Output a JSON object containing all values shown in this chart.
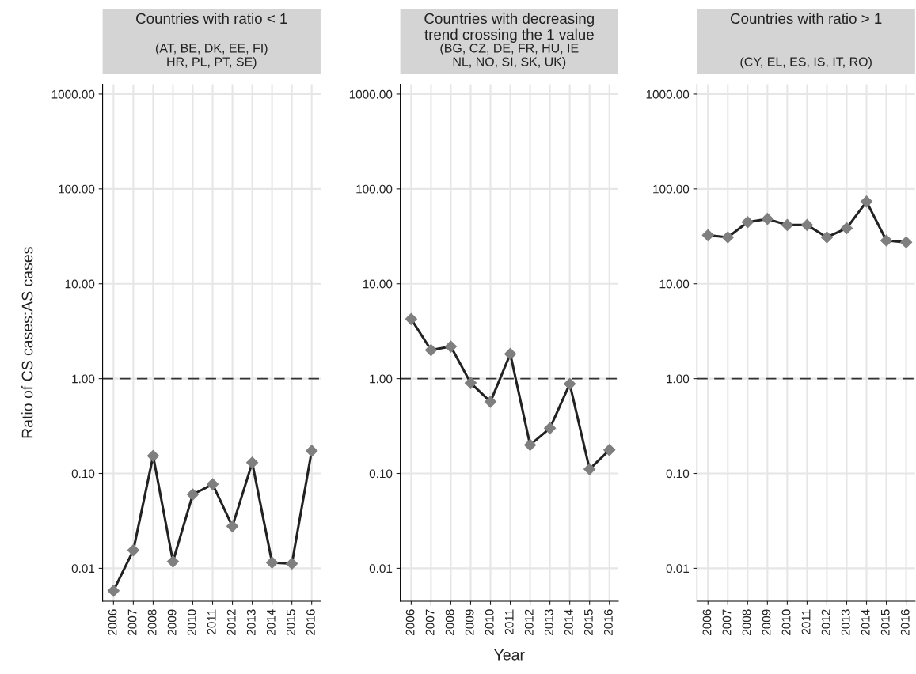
{
  "chart_data": [
    {
      "type": "line",
      "title": "Countries with ratio < 1",
      "subtitle": "(AT, BE, DK, EE, FI)\nHR, PL, PT, SE)",
      "ylabel": "Ratio of CS cases:AS cases",
      "categories": [
        "2006",
        "2007",
        "2008",
        "2009",
        "2010",
        "2011",
        "2012",
        "2013",
        "2014",
        "2015",
        "2016"
      ],
      "series": [
        {
          "color": "#7f7f7f",
          "values": [
            0.0058,
            0.0155,
            0.153,
            0.0118,
            0.06,
            0.077,
            0.0277,
            0.13,
            0.0115,
            0.0112,
            0.173
          ]
        }
      ],
      "log": "y",
      "ylim": [
        0.0045,
        1270
      ],
      "yticks": [
        {
          "value": 0.01,
          "label": "0.01"
        },
        {
          "value": 0.1,
          "label": "0.10"
        },
        {
          "value": 1,
          "label": "1.00"
        },
        {
          "value": 10,
          "label": "10.00"
        },
        {
          "value": 100,
          "label": "100.00"
        },
        {
          "value": 1000,
          "label": "1000.00"
        }
      ],
      "ref_lines": [
        {
          "axis": "y",
          "value": 1,
          "color": "#333333",
          "line_style": "dashed"
        }
      ],
      "grid": true,
      "marker": "diamond",
      "line_style": "solid"
    },
    {
      "type": "line",
      "title": "Countries with decreasing\ntrend crossing the 1 value",
      "subtitle": "(BG, CZ, DE, FR, HU, IE\nNL, NO, SI, SK, UK)",
      "xlabel": "Year",
      "categories": [
        "2006",
        "2007",
        "2008",
        "2009",
        "2010",
        "2011",
        "2012",
        "2013",
        "2014",
        "2015",
        "2016"
      ],
      "series": [
        {
          "color": "#7f7f7f",
          "values": [
            4.25,
            2.0,
            2.18,
            0.9,
            0.57,
            1.82,
            0.2,
            0.3,
            0.88,
            0.111,
            0.177
          ]
        }
      ],
      "log": "y",
      "ylim": [
        0.0045,
        1270
      ],
      "yticks": [
        {
          "value": 0.01,
          "label": "0.01"
        },
        {
          "value": 0.1,
          "label": "0.10"
        },
        {
          "value": 1,
          "label": "1.00"
        },
        {
          "value": 10,
          "label": "10.00"
        },
        {
          "value": 100,
          "label": "100.00"
        },
        {
          "value": 1000,
          "label": "1000.00"
        }
      ],
      "ref_lines": [
        {
          "axis": "y",
          "value": 1,
          "color": "#333333",
          "line_style": "dashed"
        }
      ],
      "grid": true,
      "marker": "diamond",
      "line_style": "solid"
    },
    {
      "type": "line",
      "title": "Countries with ratio > 1",
      "subtitle": "(CY, EL, ES, IS, IT, RO)",
      "categories": [
        "2006",
        "2007",
        "2008",
        "2009",
        "2010",
        "2011",
        "2012",
        "2013",
        "2014",
        "2015",
        "2016"
      ],
      "series": [
        {
          "color": "#7f7f7f",
          "values": [
            32.5,
            30.9,
            44.7,
            48.3,
            41.7,
            41.7,
            30.9,
            38.6,
            73.5,
            28.6,
            27.4
          ]
        }
      ],
      "log": "y",
      "ylim": [
        0.0045,
        1270
      ],
      "yticks": [
        {
          "value": 0.01,
          "label": "0.01"
        },
        {
          "value": 0.1,
          "label": "0.10"
        },
        {
          "value": 1,
          "label": "1.00"
        },
        {
          "value": 10,
          "label": "10.00"
        },
        {
          "value": 100,
          "label": "100.00"
        },
        {
          "value": 1000,
          "label": "1000.00"
        }
      ],
      "ref_lines": [
        {
          "axis": "y",
          "value": 1,
          "color": "#333333",
          "line_style": "dashed"
        }
      ],
      "grid": true,
      "marker": "diamond",
      "line_style": "solid"
    }
  ]
}
